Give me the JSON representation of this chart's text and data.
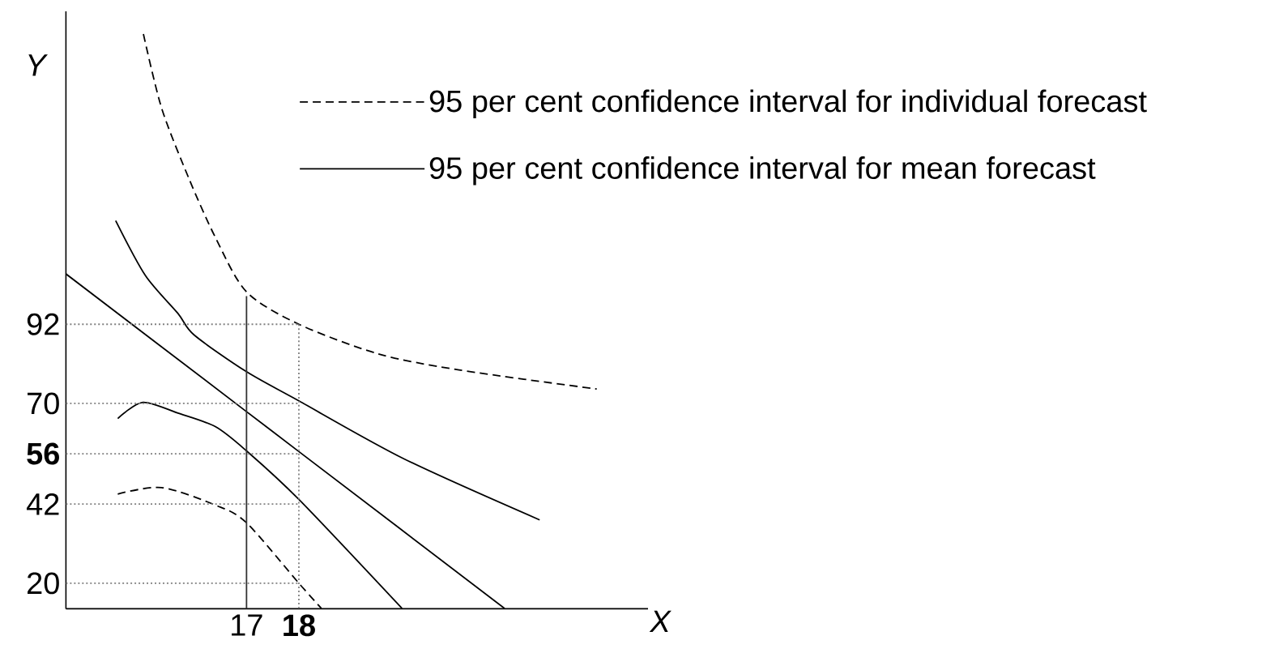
{
  "chart_data": {
    "type": "line",
    "xlabel": "X",
    "ylabel": "Y",
    "xlim": [
      13.55,
      24.67
    ],
    "ylim": [
      12.9,
      179
    ],
    "xticks": [
      17,
      {
        "value": 18,
        "label": "**18**"
      }
    ],
    "yticks": [
      20,
      42,
      {
        "value": 56,
        "label": "**56**"
      },
      70,
      92
    ],
    "grid": false,
    "legend": "top right",
    "series": [
      {
        "name": "95 per cent confidence interval for individual forecast",
        "color": "#000000",
        "line_style": "dashed",
        "x": [
          15.03,
          15.38,
          15.9,
          16.41,
          17,
          18,
          19.51,
          21.06,
          23.69
        ],
        "values": [
          172.7,
          152,
          132.5,
          116,
          101,
          92,
          83.8,
          79.3,
          74
        ]
      },
      {
        "name": "95 per cent confidence interval for mean forecast",
        "color": "#000000",
        "line_style": "solid",
        "x": [
          14.5,
          15.07,
          15.69,
          16.0,
          17,
          18,
          20.02,
          22.6
        ],
        "values": [
          120.8,
          105.5,
          95,
          89,
          78.8,
          70.7,
          54.5,
          37.6
        ]
      },
      {
        "color": "#000000",
        "line_style": "solid",
        "x": [
          13.55,
          17,
          18,
          21.93
        ],
        "values": [
          106,
          67.7,
          56.6,
          13
        ]
      },
      {
        "color": "#000000",
        "line_style": "solid",
        "x": [
          14.54,
          15.02,
          15.69,
          16.41,
          17,
          18,
          19.97
        ],
        "values": [
          65.8,
          70.3,
          67.3,
          63.5,
          56.8,
          43.3,
          13
        ]
      },
      {
        "color": "#000000",
        "line_style": "dashed",
        "x": [
          14.54,
          15.38,
          16.41,
          17,
          18,
          18.43
        ],
        "values": [
          44.8,
          46.6,
          41.7,
          36.8,
          20,
          13
        ]
      },
      {
        "color": "#333333",
        "line_style": "solid",
        "x": [
          17,
          17
        ],
        "values": [
          12.9,
          99.8
        ]
      },
      {
        "color": "#808080",
        "line_style": "dotted",
        "x": [
          13.55,
          18
        ],
        "values": [
          92,
          92
        ]
      },
      {
        "color": "#808080",
        "line_style": "dotted",
        "x": [
          13.55,
          18
        ],
        "values": [
          70,
          70
        ]
      },
      {
        "color": "#808080",
        "line_style": "dotted",
        "x": [
          13.55,
          18
        ],
        "values": [
          56,
          56
        ]
      },
      {
        "color": "#808080",
        "line_style": "dotted",
        "x": [
          13.55,
          18
        ],
        "values": [
          42,
          42
        ]
      },
      {
        "color": "#808080",
        "line_style": "dotted",
        "x": [
          13.55,
          18
        ],
        "values": [
          20,
          20
        ]
      },
      {
        "color": "#808080",
        "line_style": "dotted",
        "x": [
          18,
          18
        ],
        "values": [
          92,
          12.9
        ]
      }
    ]
  }
}
